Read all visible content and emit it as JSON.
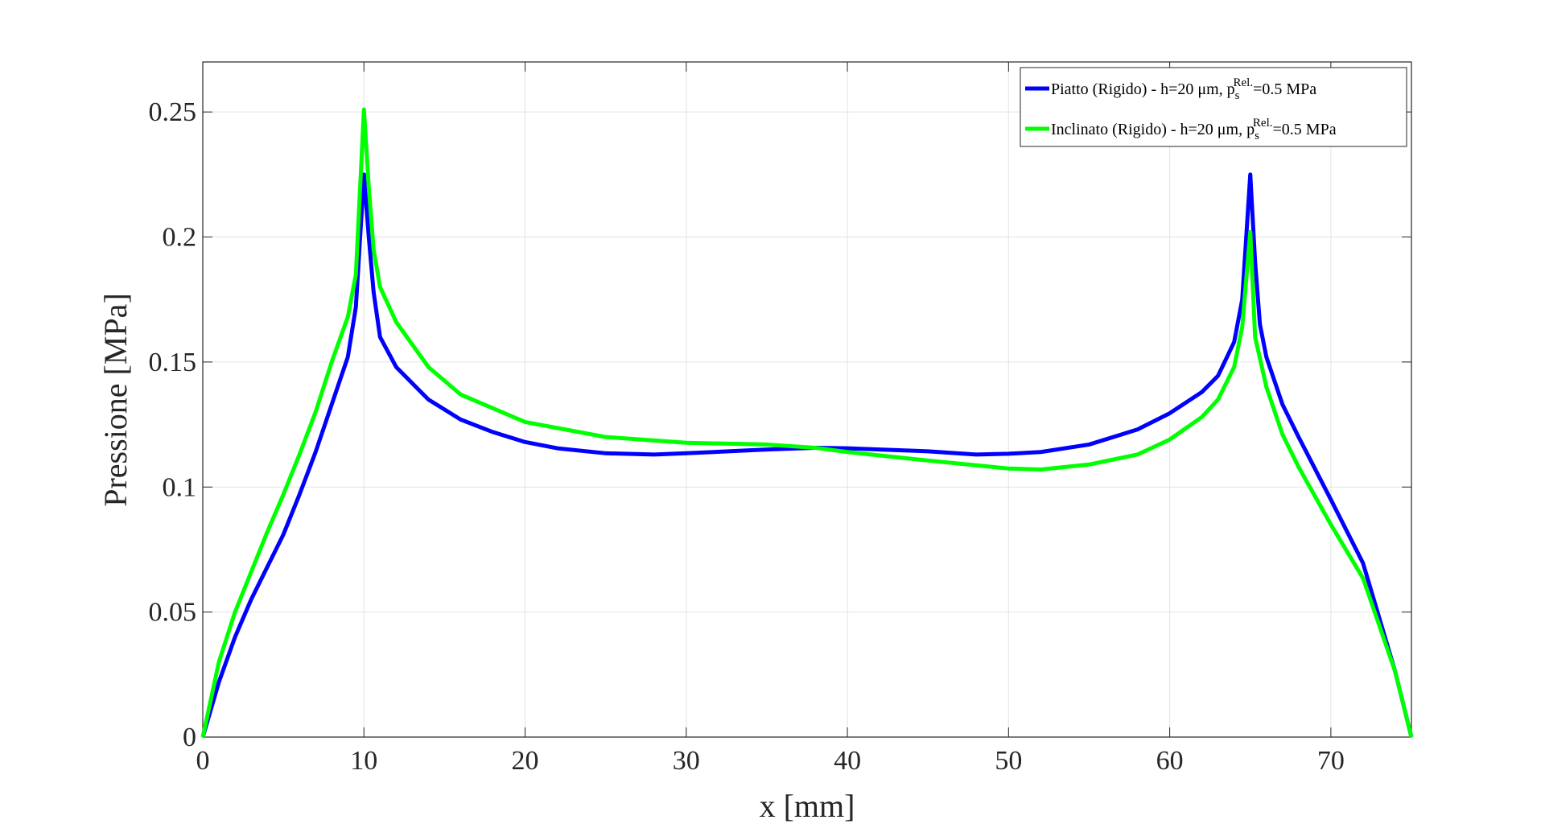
{
  "chart_data": {
    "type": "line",
    "xlabel": "x [mm]",
    "ylabel": "Pressione [MPa]",
    "xlim": [
      0,
      75
    ],
    "ylim": [
      0,
      0.27
    ],
    "xticks": [
      0,
      10,
      20,
      30,
      40,
      50,
      60,
      70
    ],
    "yticks": [
      0,
      0.05,
      0.1,
      0.15,
      0.2,
      0.25
    ],
    "grid": true,
    "legend": "upper right",
    "series": [
      {
        "name": "Piatto (Rigido) - h=20 μm, p_s^{Rel.}=0.5 MPa",
        "color": "#0000ff",
        "x": [
          0,
          1,
          2,
          3,
          4,
          5,
          6,
          7,
          8,
          9,
          9.5,
          10,
          10.3,
          10.6,
          11,
          12,
          14,
          16,
          18,
          20,
          22,
          25,
          28,
          30,
          35,
          38,
          40,
          45,
          48,
          50,
          52,
          55,
          58,
          60,
          62,
          63,
          64,
          64.5,
          65,
          65.3,
          65.6,
          66,
          67,
          68,
          70,
          72,
          74,
          75
        ],
        "values": [
          0,
          0.022,
          0.04,
          0.055,
          0.068,
          0.081,
          0.097,
          0.114,
          0.133,
          0.152,
          0.172,
          0.225,
          0.2,
          0.178,
          0.16,
          0.148,
          0.135,
          0.127,
          0.122,
          0.118,
          0.1155,
          0.1135,
          0.113,
          0.1135,
          0.115,
          0.1157,
          0.1155,
          0.1143,
          0.113,
          0.1133,
          0.114,
          0.117,
          0.123,
          0.1295,
          0.138,
          0.1445,
          0.158,
          0.175,
          0.225,
          0.19,
          0.165,
          0.152,
          0.133,
          0.12,
          0.095,
          0.0695,
          0.026,
          0
        ]
      },
      {
        "name": "Inclinato (Rigido) - h=20 μm, p_s^{Rel.}=0.5 MPa",
        "color": "#00ff00",
        "x": [
          0,
          1,
          2,
          3,
          4,
          5,
          6,
          7,
          8,
          9,
          9.5,
          10,
          10.3,
          10.6,
          11,
          12,
          14,
          16,
          20,
          25,
          30,
          35,
          38,
          40,
          45,
          50,
          52,
          55,
          58,
          60,
          62,
          63,
          64,
          64.5,
          65,
          65.3,
          66,
          67,
          68,
          70,
          72,
          74,
          75
        ],
        "values": [
          0,
          0.03,
          0.05,
          0.066,
          0.082,
          0.097,
          0.113,
          0.13,
          0.15,
          0.168,
          0.185,
          0.251,
          0.22,
          0.195,
          0.18,
          0.166,
          0.148,
          0.137,
          0.126,
          0.12,
          0.1177,
          0.117,
          0.1157,
          0.114,
          0.1106,
          0.1074,
          0.107,
          0.109,
          0.113,
          0.119,
          0.128,
          0.135,
          0.148,
          0.164,
          0.202,
          0.16,
          0.14,
          0.121,
          0.108,
          0.085,
          0.0635,
          0.026,
          0
        ]
      }
    ]
  }
}
